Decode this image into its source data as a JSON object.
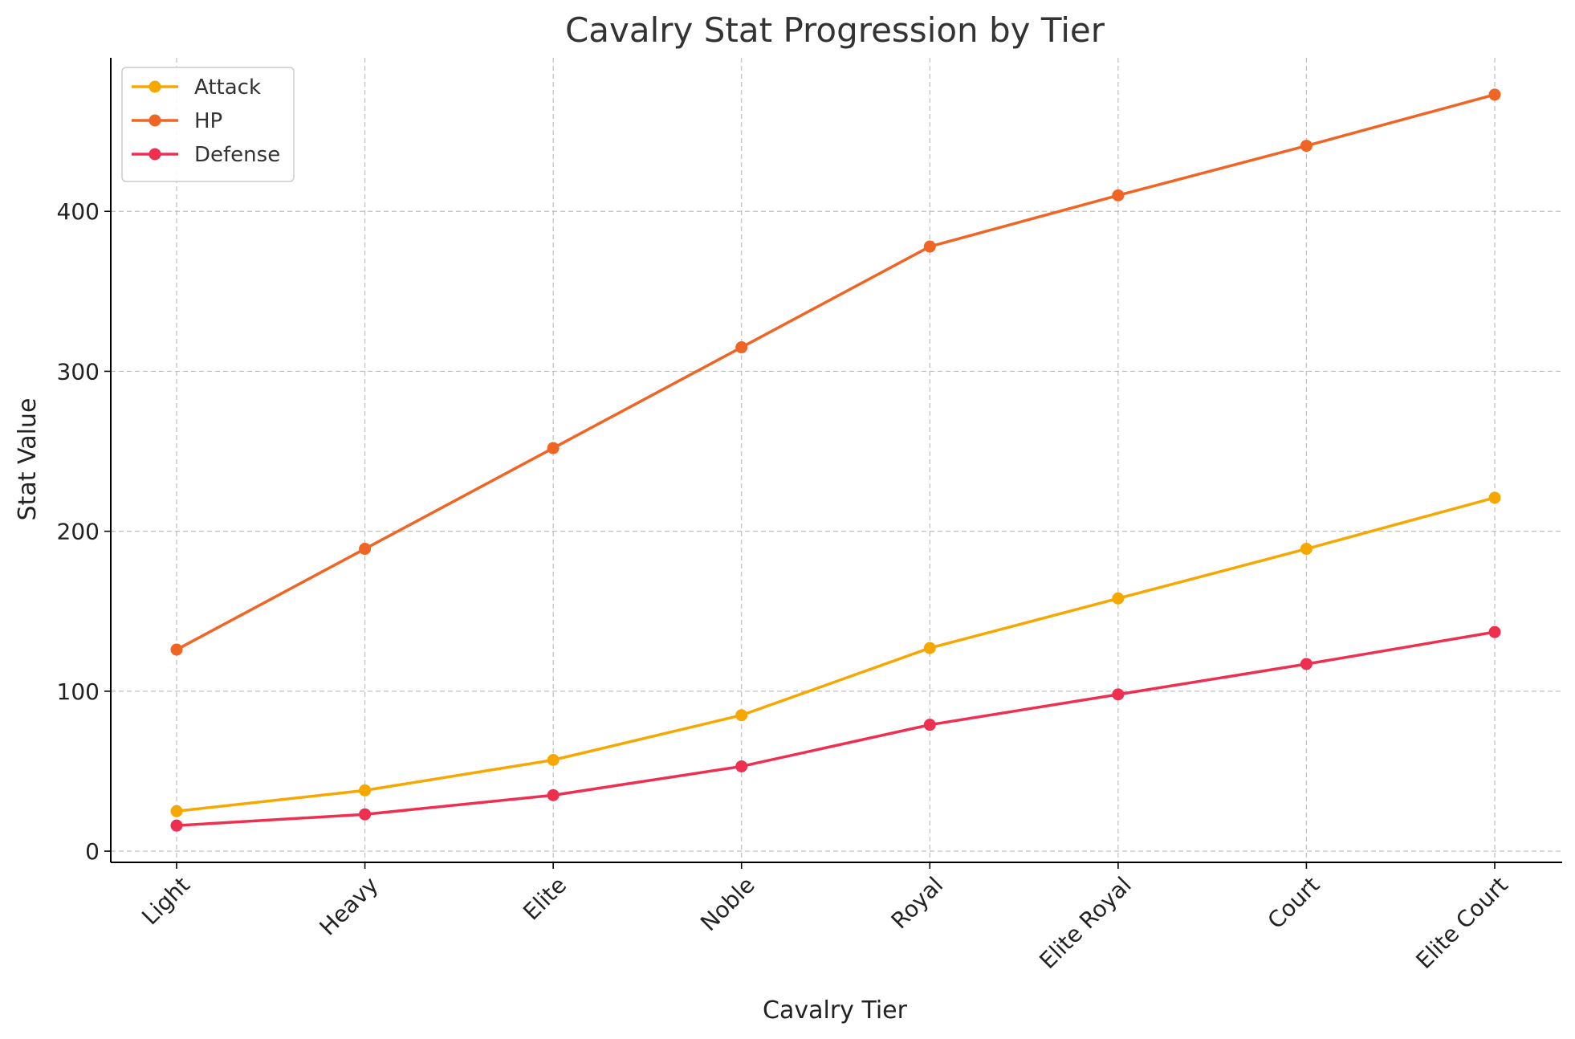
{
  "chart_data": {
    "type": "line",
    "title": "Cavalry Stat Progression by Tier",
    "xlabel": "Cavalry Tier",
    "ylabel": "Stat Value",
    "categories": [
      "Light",
      "Heavy",
      "Elite",
      "Noble",
      "Royal",
      "Elite Royal",
      "Court",
      "Elite Court"
    ],
    "series": [
      {
        "name": "Attack",
        "color": "#f6a800",
        "values": [
          25,
          38,
          57,
          85,
          127,
          158,
          189,
          221
        ]
      },
      {
        "name": "HP",
        "color": "#f06424",
        "values": [
          126,
          189,
          252,
          315,
          378,
          410,
          441,
          473
        ]
      },
      {
        "name": "Defense",
        "color": "#ef2f50",
        "values": [
          16,
          23,
          35,
          53,
          79,
          98,
          117,
          137
        ]
      }
    ],
    "ylim": [
      -7,
      496
    ],
    "yticks": [
      0,
      100,
      200,
      300,
      400
    ],
    "grid": true,
    "legend_position": "top-left",
    "marker": "circle"
  }
}
